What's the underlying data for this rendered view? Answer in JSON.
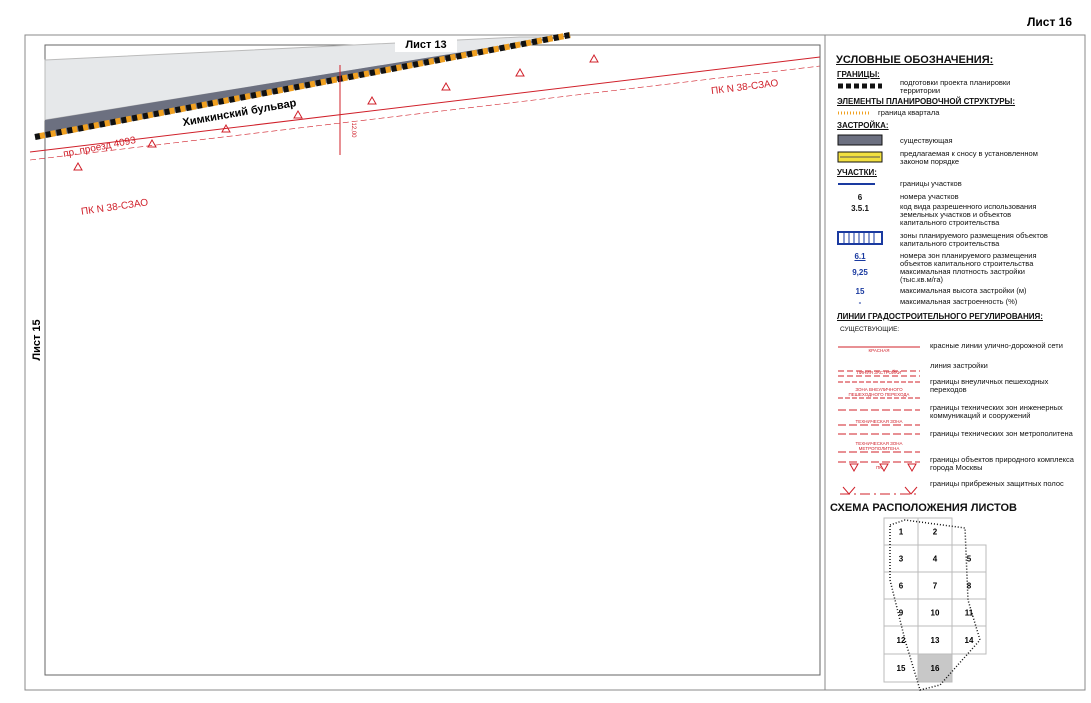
{
  "sheet_label": "Лист 16",
  "map": {
    "top_label": "Лист 13",
    "left_label": "Лист 15",
    "street": "Химкинский бульвар",
    "passage": "пр. проезд 4093",
    "pk_labels": [
      "ПК N 38-СЗАО",
      "ПК N 38-СЗАО"
    ],
    "dimension": "12,00"
  },
  "legend": {
    "title": "УСЛОВНЫЕ ОБОЗНАЧЕНИЯ:",
    "boundaries": {
      "heading": "ГРАНИЦЫ:",
      "project": "подготовки проекта планировки территории"
    },
    "structure": {
      "heading": "ЭЛЕМЕНТЫ ПЛАНИРОВОЧНОЙ СТРУКТУРЫ:",
      "block": "граница квартала"
    },
    "buildings": {
      "heading": "ЗАСТРОЙКА:",
      "existing": "существующая",
      "demolish": "предлагаемая к сносу в установленном законом порядке"
    },
    "plots": {
      "heading": "УЧАСТКИ:",
      "boundary": "границы участков",
      "items": [
        {
          "code": "6",
          "text": "номера участков"
        },
        {
          "code": "3.5.1",
          "text": "код вида разрешенного использования земельных участков и объектов капитального строительства"
        },
        {
          "code": "",
          "text": "зоны планируемого размещения объектов капитального строительства"
        },
        {
          "code": "6.1",
          "text": "номера зон планируемого размещения объектов капитального строительства"
        },
        {
          "code": "9,25",
          "text": "максимальная плотность застройки (тыс.кв.м/га)"
        },
        {
          "code": "15",
          "text": "максимальная высота застройки (м)"
        },
        {
          "code": "-",
          "text": "максимальная застроенность (%)"
        }
      ]
    },
    "lines": {
      "heading": "ЛИНИИ ГРАДОСТРОИТЕЛЬНОГО РЕГУЛИРОВАНИЯ:",
      "subheading": "СУЩЕСТВУЮЩИЕ:",
      "items": [
        {
          "tag": "КРАСНАЯ",
          "text": "красные линии улично-дорожной сети"
        },
        {
          "tag": "ЛИНИЯ ЗАСТРОЙКИ",
          "text": "линия застройки"
        },
        {
          "tag": "ЗОНА ВНЕУЛИЧНОГО ПЕШЕХОДНОГО ПЕРЕХОДА",
          "text": "границы внеуличных пешеходных переходов"
        },
        {
          "tag": "ТЕХНИЧЕСКАЯ ЗОНА",
          "text": "границы технических зон инженерных коммуникаций и сооружений"
        },
        {
          "tag": "ТЕХНИЧЕСКАЯ ЗОНА МЕТРОПОЛИТЕНА",
          "text": "границы технических зон метрополитена"
        },
        {
          "tag": "ПК",
          "text": "границы объектов природного комплекса города Москвы"
        },
        {
          "tag": "",
          "text": "границы прибрежных защитных полос"
        }
      ]
    }
  },
  "scheme": {
    "title": "СХЕМА РАСПОЛОЖЕНИЯ ЛИСТОВ",
    "rows": [
      [
        "1",
        "2"
      ],
      [
        "3",
        "4",
        "5"
      ],
      [
        "6",
        "7",
        "8"
      ],
      [
        "9",
        "10",
        "11"
      ],
      [
        "12",
        "13",
        "14"
      ],
      [
        "15",
        "16"
      ]
    ]
  }
}
